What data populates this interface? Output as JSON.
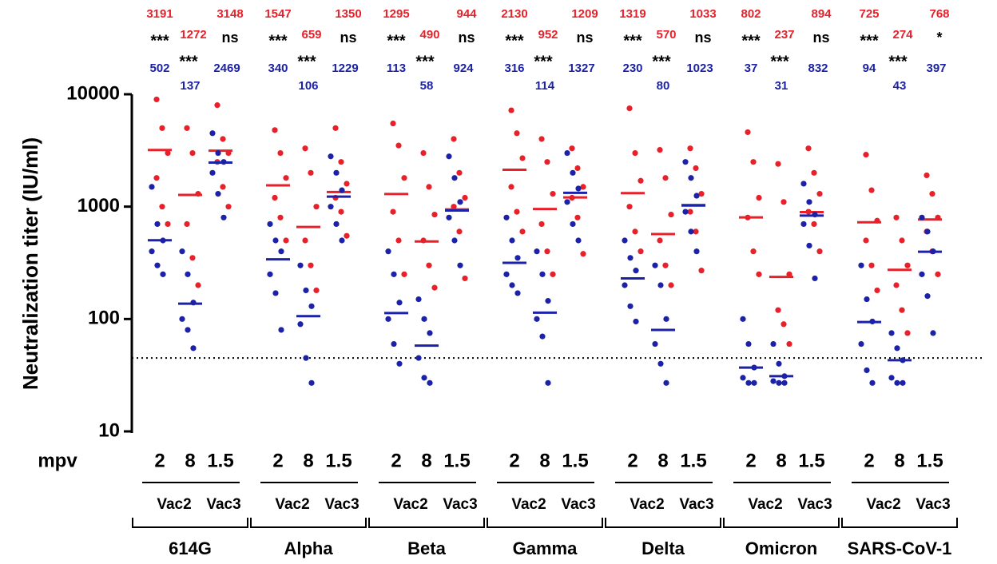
{
  "chart_data": {
    "type": "dot",
    "y_label": "Neutralization titer (IU/ml)",
    "x_label": "mpv",
    "log_scale": true,
    "ylim": [
      10,
      10000
    ],
    "yticks": [
      10,
      100,
      1000,
      10000
    ],
    "threshold": 45,
    "timepoints": [
      "2",
      "8",
      "1.5"
    ],
    "vaccines": [
      "Vac2",
      "Vac3"
    ],
    "red_color": "#e8202a",
    "blue_color": "#1c22a8",
    "groups": [
      {
        "variant": "614G",
        "red_medians": [
          3191,
          1272,
          3148
        ],
        "blue_medians": [
          502,
          137,
          2469
        ],
        "significance": [
          "***",
          "***",
          "ns"
        ],
        "red_points": [
          [
            9000,
            5000,
            3000,
            1800,
            1000,
            700
          ],
          [
            5000,
            3000,
            1300,
            700,
            350,
            200
          ],
          [
            8000,
            4000,
            3000,
            2500,
            1500,
            1000
          ]
        ],
        "blue_points": [
          [
            1500,
            700,
            500,
            400,
            300,
            250
          ],
          [
            400,
            250,
            140,
            100,
            80,
            55
          ],
          [
            4500,
            3000,
            2500,
            2000,
            1300,
            800
          ]
        ]
      },
      {
        "variant": "Alpha",
        "red_medians": [
          1547,
          659,
          1350
        ],
        "blue_medians": [
          340,
          106,
          1229
        ],
        "significance": [
          "***",
          "***",
          "ns"
        ],
        "red_points": [
          [
            4800,
            3000,
            1800,
            1200,
            800,
            500
          ],
          [
            3300,
            2000,
            1000,
            500,
            300,
            180
          ],
          [
            5000,
            2500,
            1600,
            1200,
            900,
            550
          ]
        ],
        "blue_points": [
          [
            700,
            500,
            400,
            250,
            170,
            80
          ],
          [
            300,
            180,
            130,
            90,
            45,
            27
          ],
          [
            2800,
            2000,
            1400,
            1000,
            700,
            500
          ]
        ]
      },
      {
        "variant": "Beta",
        "red_medians": [
          1295,
          490,
          944
        ],
        "blue_medians": [
          113,
          58,
          924
        ],
        "significance": [
          "***",
          "***",
          "ns"
        ],
        "red_points": [
          [
            5500,
            3500,
            1800,
            900,
            500,
            250
          ],
          [
            3000,
            1500,
            850,
            500,
            300,
            190
          ],
          [
            4000,
            2000,
            1200,
            1000,
            600,
            230
          ]
        ],
        "blue_points": [
          [
            400,
            250,
            140,
            100,
            60,
            40
          ],
          [
            150,
            100,
            75,
            45,
            30,
            27
          ],
          [
            2800,
            1800,
            1100,
            800,
            500,
            300
          ]
        ]
      },
      {
        "variant": "Gamma",
        "red_medians": [
          2130,
          952,
          1209
        ],
        "blue_medians": [
          316,
          114,
          1327
        ],
        "significance": [
          "***",
          "***",
          "ns"
        ],
        "red_points": [
          [
            7200,
            4500,
            2700,
            1500,
            900,
            600
          ],
          [
            4000,
            2500,
            1300,
            700,
            400,
            250
          ],
          [
            3300,
            2200,
            1500,
            1200,
            800,
            380
          ]
        ],
        "blue_points": [
          [
            800,
            500,
            350,
            250,
            200,
            170
          ],
          [
            400,
            250,
            145,
            100,
            70,
            27
          ],
          [
            3000,
            2000,
            1450,
            1100,
            700,
            500
          ]
        ]
      },
      {
        "variant": "Delta",
        "red_medians": [
          1319,
          570,
          1033
        ],
        "blue_medians": [
          230,
          80,
          1023
        ],
        "significance": [
          "***",
          "***",
          "ns"
        ],
        "red_points": [
          [
            7500,
            3000,
            1700,
            1000,
            600,
            400
          ],
          [
            3200,
            1800,
            850,
            500,
            300,
            200
          ],
          [
            3300,
            2200,
            1300,
            900,
            600,
            270
          ]
        ],
        "blue_points": [
          [
            500,
            350,
            270,
            200,
            130,
            95
          ],
          [
            300,
            200,
            100,
            60,
            40,
            27
          ],
          [
            2500,
            1800,
            1250,
            900,
            600,
            400
          ]
        ]
      },
      {
        "variant": "Omicron",
        "red_medians": [
          802,
          237,
          894
        ],
        "blue_medians": [
          37,
          31,
          832
        ],
        "significance": [
          "***",
          "***",
          "ns"
        ],
        "red_points": [
          [
            4600,
            2500,
            1200,
            800,
            400,
            250
          ],
          [
            2400,
            1100,
            250,
            120,
            90,
            60
          ],
          [
            3300,
            2000,
            1300,
            900,
            700,
            400
          ]
        ],
        "blue_points": [
          [
            100,
            60,
            37,
            30,
            27,
            27
          ],
          [
            60,
            40,
            31,
            28,
            27,
            27
          ],
          [
            1600,
            1100,
            850,
            700,
            450,
            230
          ]
        ]
      },
      {
        "variant": "SARS-CoV-1",
        "red_medians": [
          725,
          274,
          768
        ],
        "blue_medians": [
          94,
          43,
          397
        ],
        "significance": [
          "***",
          "***",
          "*"
        ],
        "red_points": [
          [
            2900,
            1400,
            750,
            500,
            300,
            180
          ],
          [
            800,
            500,
            300,
            200,
            120,
            75
          ],
          [
            1900,
            1300,
            800,
            600,
            400,
            250
          ]
        ],
        "blue_points": [
          [
            300,
            150,
            95,
            60,
            35,
            27
          ],
          [
            75,
            55,
            43,
            30,
            27,
            27
          ],
          [
            800,
            600,
            400,
            250,
            160,
            75
          ]
        ]
      }
    ]
  }
}
